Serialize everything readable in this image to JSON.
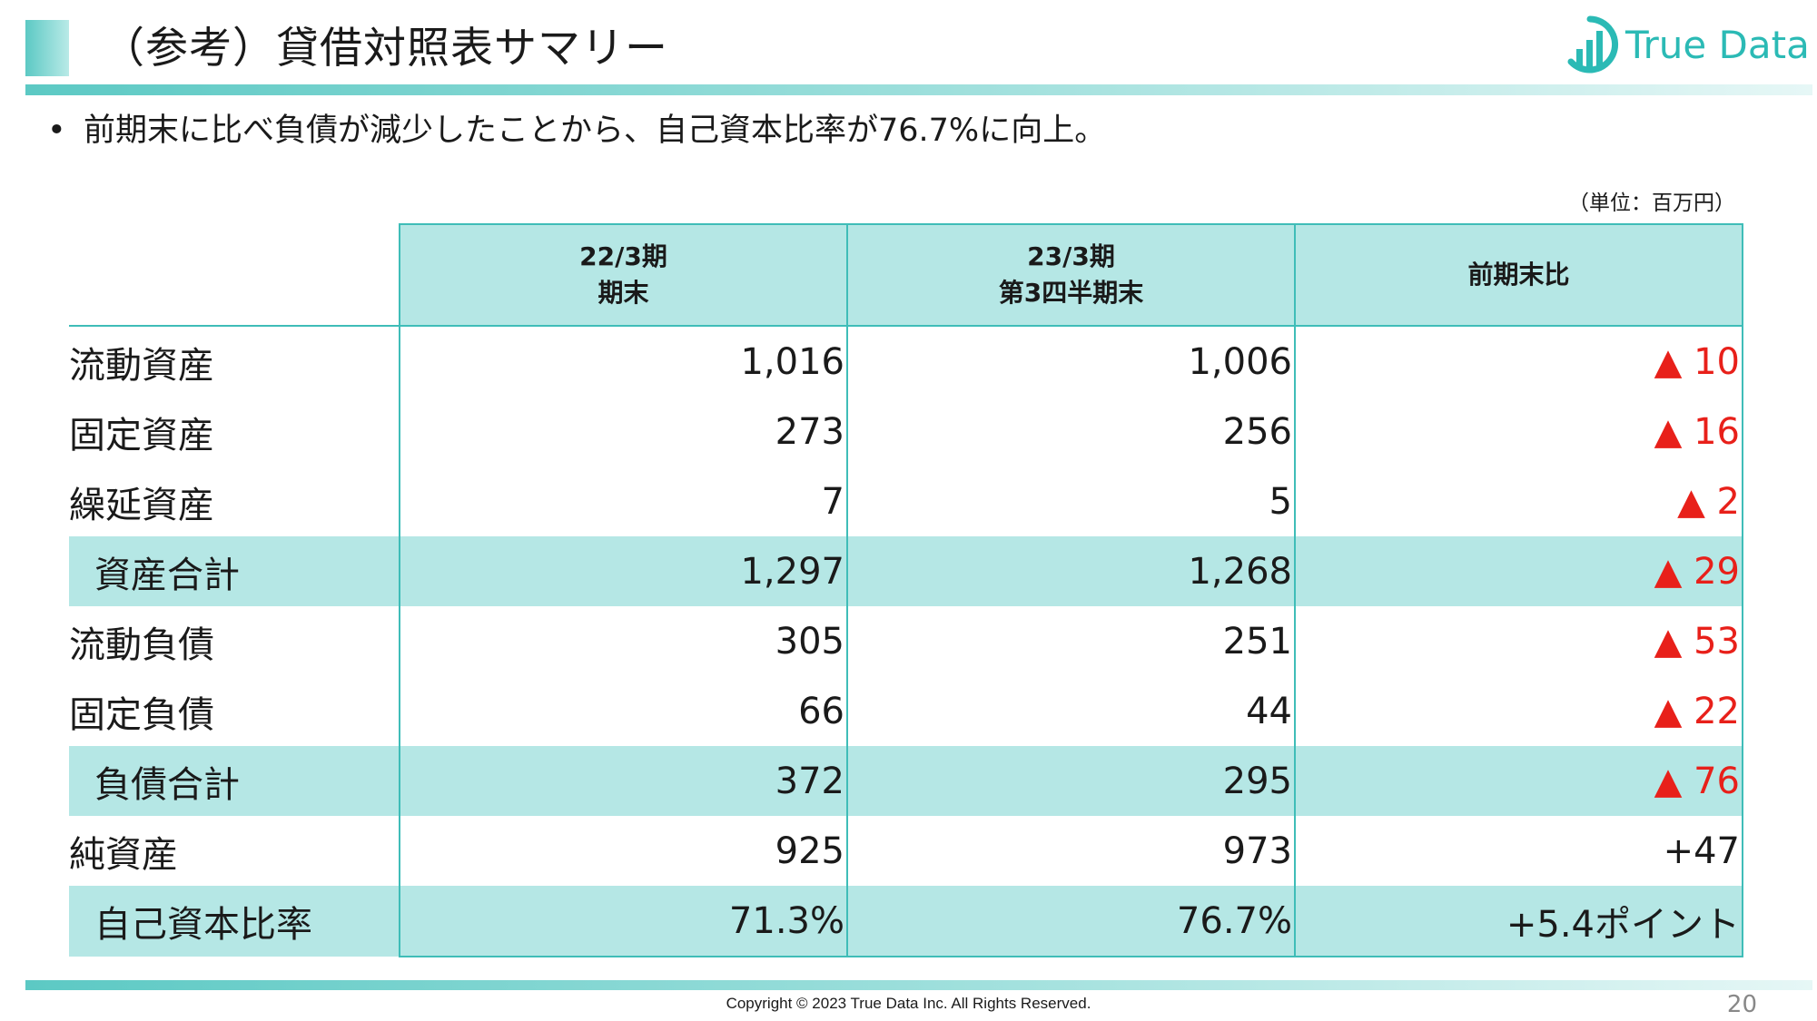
{
  "title": "（参考）貸借対照表サマリー",
  "logo": {
    "text": "True Data",
    "color": "#2bbab5",
    "icon": "bar-chart-logo-icon"
  },
  "bullet": "前期末に比べ負債が減少したことから、自己資本比率が76.7%に向上。",
  "unit": "（単位：百万円）",
  "table": {
    "headers": [
      {
        "line1": "22/3期",
        "line2": "期末"
      },
      {
        "line1": "23/3期",
        "line2": "第3四半期末"
      },
      {
        "line1": "前期末比",
        "line2": ""
      }
    ],
    "rows": [
      {
        "label": "流動資産",
        "v1": "1,016",
        "v2": "1,006",
        "diff": "▲ 10"
      },
      {
        "label": "固定資産",
        "v1": "273",
        "v2": "256",
        "diff": "▲ 16"
      },
      {
        "label": "繰延資産",
        "v1": "7",
        "v2": "5",
        "diff": "▲ 2"
      },
      {
        "label": "資産合計",
        "v1": "1,297",
        "v2": "1,268",
        "diff": "▲ 29"
      },
      {
        "label": "流動負債",
        "v1": "305",
        "v2": "251",
        "diff": "▲ 53"
      },
      {
        "label": "固定負債",
        "v1": "66",
        "v2": "44",
        "diff": "▲ 22"
      },
      {
        "label": "負債合計",
        "v1": "372",
        "v2": "295",
        "diff": "▲ 76"
      },
      {
        "label": "純資産",
        "v1": "925",
        "v2": "973",
        "diff": "+47"
      },
      {
        "label": "自己資本比率",
        "v1": "71.3%",
        "v2": "76.7%",
        "diff": "+5.4ポイント"
      }
    ]
  },
  "colors": {
    "accent": "#3fbdb8",
    "highlight_row": "#b5e7e5",
    "negative": "#e8201a"
  },
  "footer": {
    "copyright": "Copyright © 2023 True Data Inc. All Rights Reserved.",
    "page": "20"
  }
}
